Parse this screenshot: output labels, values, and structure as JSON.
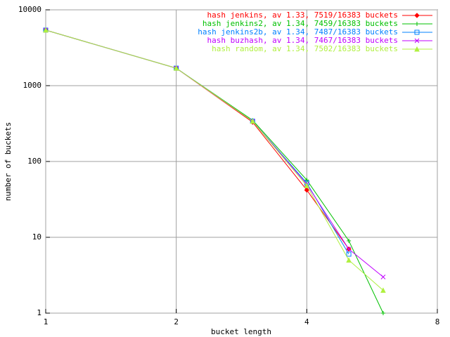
{
  "chart_data": {
    "type": "line",
    "xlabel": "bucket length",
    "ylabel": "number of buckets",
    "x": [
      1,
      2,
      3,
      4,
      5,
      6
    ],
    "series": [
      {
        "name": "hash jenkins, av 1.33, 7519/16383 buckets",
        "color": "#ff0000",
        "marker": "diamond",
        "values": [
          5400,
          1700,
          330,
          42,
          7,
          null
        ]
      },
      {
        "name": "hash jenkins2, av 1.34, 7459/16383 buckets",
        "color": "#00c000",
        "marker": "plus",
        "values": [
          5400,
          1700,
          350,
          57,
          9,
          1
        ]
      },
      {
        "name": "hash jenkins2b, av 1.34, 7487/16383 buckets",
        "color": "#0080ff",
        "marker": "square",
        "values": [
          5400,
          1700,
          340,
          52,
          6,
          null
        ]
      },
      {
        "name": "hash buzhash, av 1.34, 7467/16383 buckets",
        "color": "#c000ff",
        "marker": "cross",
        "values": [
          5400,
          1700,
          340,
          50,
          7,
          3
        ]
      },
      {
        "name": "hash random, av 1.34, 7502/16383 buckets",
        "color": "#b0f040",
        "marker": "triangle",
        "values": [
          5400,
          1700,
          340,
          48,
          5,
          2
        ]
      }
    ],
    "xlim": [
      1,
      8
    ],
    "xticks": [
      1,
      2,
      4,
      8
    ],
    "xlog": 2,
    "ylim": [
      1,
      10000
    ],
    "yticks": [
      1,
      10,
      100,
      1000,
      10000
    ],
    "ylog": 10,
    "grid": true,
    "legend": "top-right"
  }
}
